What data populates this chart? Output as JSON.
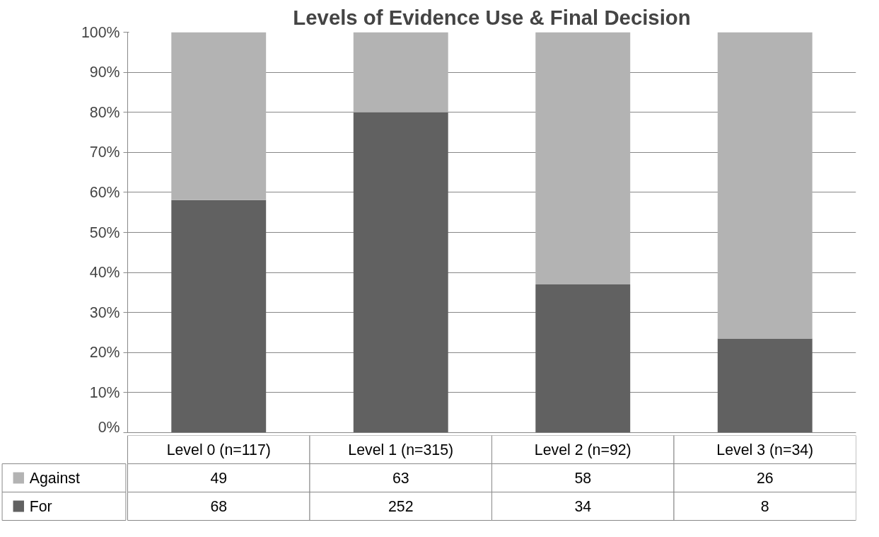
{
  "chart_data": {
    "type": "bar",
    "title": "Levels of Evidence Use & Final Decision",
    "stacked": true,
    "grid": "y",
    "legend": "bottom left",
    "categories": [
      "Level 0 (n=117)",
      "Level 1 (n=315)",
      "Level 2 (n=92)",
      "Level 3 (n=34)"
    ],
    "ylim": [
      0,
      100
    ],
    "yticks": [
      {
        "value": 0,
        "label": "0%"
      },
      {
        "value": 10,
        "label": "10%"
      },
      {
        "value": 20,
        "label": "20%"
      },
      {
        "value": 30,
        "label": "30%"
      },
      {
        "value": 40,
        "label": "40%"
      },
      {
        "value": 50,
        "label": "50%"
      },
      {
        "value": 60,
        "label": "60%"
      },
      {
        "value": 70,
        "label": "70%"
      },
      {
        "value": 80,
        "label": "80%"
      },
      {
        "value": 90,
        "label": "90%"
      },
      {
        "value": 100,
        "label": "100%"
      }
    ],
    "series": [
      {
        "name": "For",
        "color": "#616161",
        "values": [
          58.1,
          80,
          37,
          23.5
        ]
      },
      {
        "name": "Against",
        "color": "#b3b3b3",
        "values": [
          41.9,
          20,
          63,
          76.5
        ]
      }
    ],
    "annotations": [
      "49",
      "63",
      "58",
      "26",
      "68",
      "252",
      "34",
      "8"
    ]
  }
}
